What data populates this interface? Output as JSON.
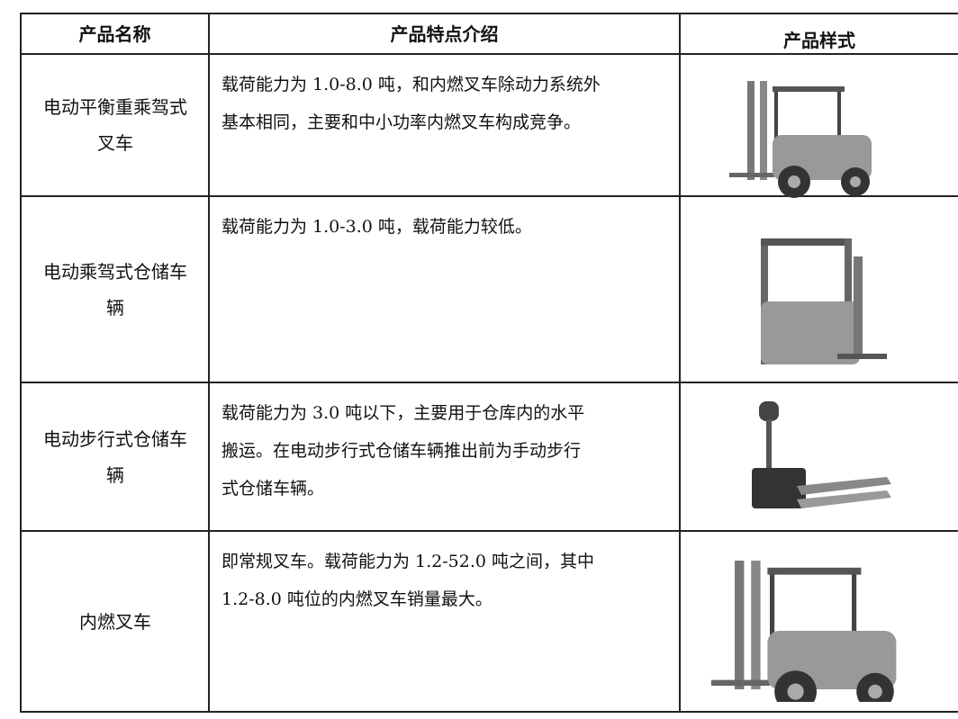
{
  "table": {
    "header": [
      "产品名称",
      "产品特点介绍",
      "产品样式"
    ],
    "rows": [
      {
        "name": [
          "电动平衡重乘驾式",
          "叉车"
        ],
        "description": [
          "载荷能力为 1.0-8.0 吨，和内燃叉车除动力系统外",
          "基本相同，主要和中小功率内燃叉车构成竞争。"
        ]
      },
      {
        "name": [
          "电动乘驾式仓储车",
          "辆"
        ],
        "description": [
          "载荷能力为 1.0-3.0 吨，载荷能力较低。"
        ]
      },
      {
        "name": [
          "电动步行式仓储车",
          "辆"
        ],
        "description": [
          "载荷能力为 3.0 吨以下，主要用于仓库内的水平",
          "搬运。在电动步行式仓储车辆推出前为手动步行",
          "式仓储车辆。"
        ]
      },
      {
        "name": [
          "内燃叉车"
        ],
        "description": [
          "即常规叉车。载荷能力为 1.2-52.0 吨之间，其中",
          "1.2-8.0 吨位的内燃叉车销量最大。"
        ]
      }
    ]
  }
}
